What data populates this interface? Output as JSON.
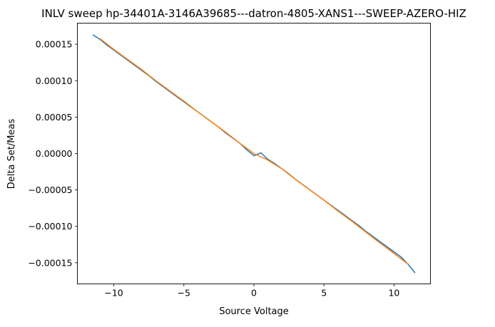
{
  "chart_data": {
    "type": "line",
    "title": "INLV sweep hp-34401A-3146A39685---datron-4805-XANS1---SWEEP-AZERO-HIZ",
    "xlabel": "Source Voltage",
    "ylabel": "Delta Set/Meas",
    "xlim": [
      -12.6,
      12.6
    ],
    "ylim": [
      -0.000179,
      0.000179
    ],
    "xticks": [
      -10,
      -5,
      0,
      5,
      10
    ],
    "xtick_labels": [
      "−10",
      "−5",
      "0",
      "5",
      "10"
    ],
    "yticks": [
      0.00015,
      0.0001,
      5e-05,
      0,
      -5e-05,
      -0.0001,
      -0.00015
    ],
    "ytick_labels": [
      "0.00015",
      "0.00010",
      "0.00005",
      "0.00000",
      "−0.00005",
      "−0.00010",
      "−0.00015"
    ],
    "grid": false,
    "series": [
      {
        "color": "#1f77b4",
        "x": [
          -11.5,
          -11,
          -10.5,
          -10,
          -9.5,
          -9,
          -8.5,
          -8,
          -7.5,
          -7,
          -6.5,
          -6,
          -5.5,
          -5,
          -4.5,
          -4,
          -3.5,
          -3,
          -2.5,
          -2,
          -1.5,
          -1,
          -0.5,
          0,
          0.5,
          1,
          1.5,
          2,
          2.5,
          3,
          3.5,
          4,
          4.5,
          5,
          5.5,
          6,
          6.5,
          7,
          7.5,
          8,
          8.5,
          9,
          9.5,
          10,
          10.5,
          11,
          11.5
        ],
        "y": [
          0.000163,
          0.000157,
          0.000149,
          0.000142,
          0.000135,
          0.000128,
          0.000121,
          0.000114,
          0.000107,
          9.9e-05,
          9.2e-05,
          8.5e-05,
          7.8e-05,
          7.1e-05,
          6.4e-05,
          5.7e-05,
          5e-05,
          4.3e-05,
          3.6e-05,
          2.8e-05,
          2.1e-05,
          1.4e-05,
          5e-06,
          -3e-06,
          1e-06,
          -8e-06,
          -1.4e-05,
          -2.1e-05,
          -2.8e-05,
          -3.6e-05,
          -4.3e-05,
          -5e-05,
          -5.7e-05,
          -6.4e-05,
          -7.1e-05,
          -7.8e-05,
          -8.5e-05,
          -9.2e-05,
          -9.9e-05,
          -0.000107,
          -0.000114,
          -0.000121,
          -0.000128,
          -0.000135,
          -0.000142,
          -0.000152,
          -0.000164
        ]
      },
      {
        "color": "#ff7f0e",
        "x": [
          -11,
          -10,
          -9,
          -8,
          -7,
          -6,
          -5,
          -4,
          -3,
          -2,
          -1,
          0,
          1,
          2,
          3,
          4,
          5,
          6,
          7,
          8,
          9,
          10,
          11
        ],
        "y": [
          0.000158,
          0.000143,
          0.000129,
          0.000115,
          0.0001,
          8.6e-05,
          7.2e-05,
          5.7e-05,
          4.3e-05,
          2.9e-05,
          1.4e-05,
          0.0,
          -9e-06,
          -2.1e-05,
          -3.6e-05,
          -5e-05,
          -6.4e-05,
          -7.9e-05,
          -9.3e-05,
          -0.000108,
          -0.000123,
          -0.000137,
          -0.000152
        ]
      }
    ]
  }
}
